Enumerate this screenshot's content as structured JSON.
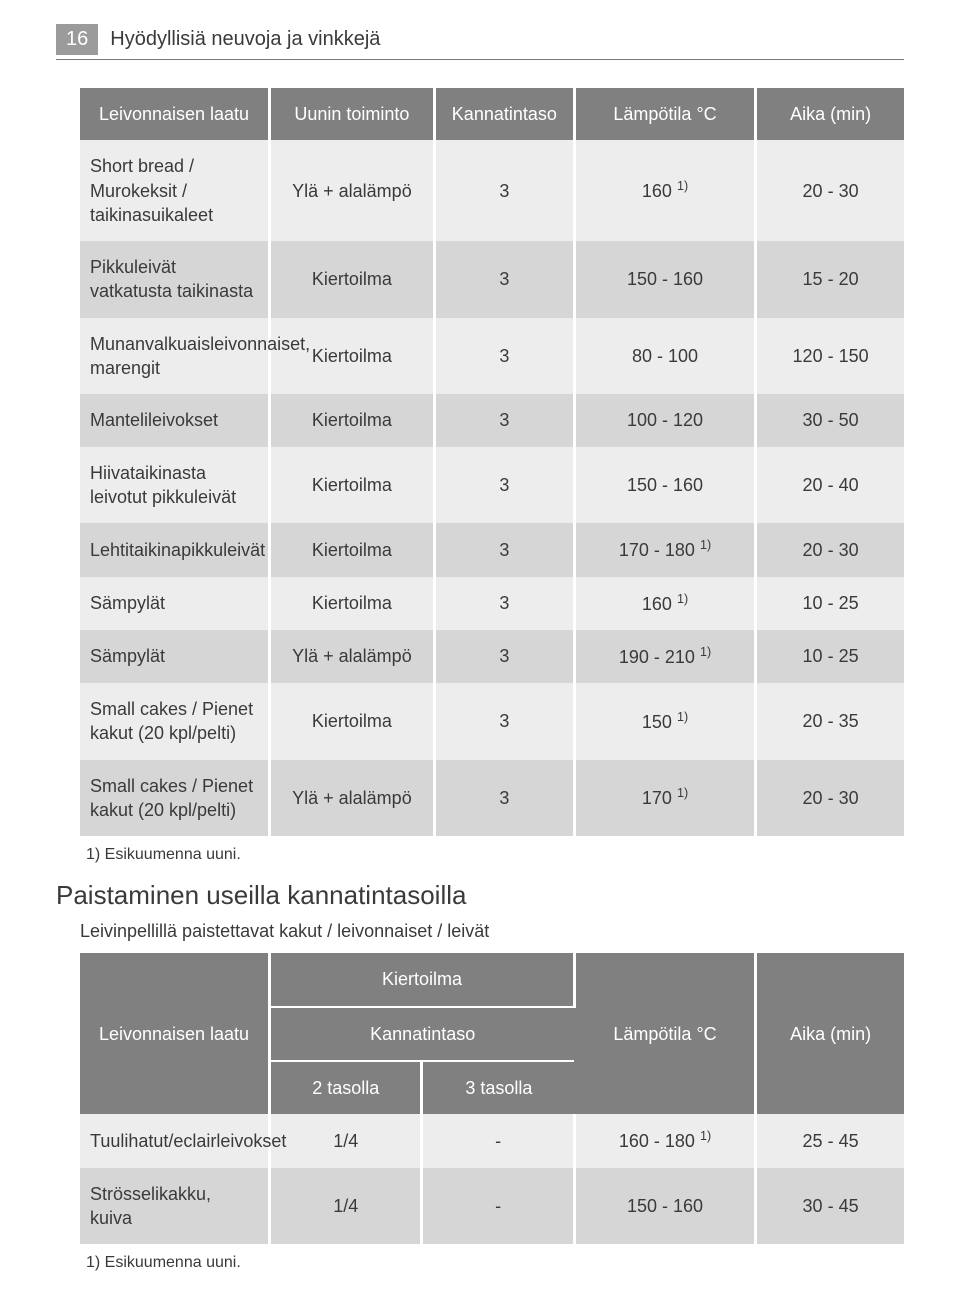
{
  "header": {
    "page_number": "16",
    "title": "Hyödyllisiä neuvoja ja vinkkejä"
  },
  "table1": {
    "headers": [
      "Leivonnaisen laatu",
      "Uunin toiminto",
      "Kannatintaso",
      "Lämpötila °C",
      "Aika (min)"
    ],
    "rows": [
      {
        "zebra": "odd",
        "cells": [
          "Short bread / Murokeksit / taikinasuikaleet",
          "Ylä + alalämpö",
          "3",
          "160 1)",
          "20 - 30"
        ]
      },
      {
        "zebra": "even",
        "cells": [
          "Pikkuleivät vatkatusta taikinasta",
          "Kiertoilma",
          "3",
          "150 - 160",
          "15 - 20"
        ]
      },
      {
        "zebra": "odd",
        "cells": [
          "Munanvalkuaisleivonnaiset, marengit",
          "Kiertoilma",
          "3",
          "80 - 100",
          "120 - 150"
        ]
      },
      {
        "zebra": "even",
        "cells": [
          "Mantelileivokset",
          "Kiertoilma",
          "3",
          "100 - 120",
          "30 - 50"
        ]
      },
      {
        "zebra": "odd",
        "cells": [
          "Hiivataikinasta leivotut pikkuleivät",
          "Kiertoilma",
          "3",
          "150 - 160",
          "20 - 40"
        ]
      },
      {
        "zebra": "even",
        "cells": [
          "Lehtitaikinapikkuleivät",
          "Kiertoilma",
          "3",
          "170 - 180 1)",
          "20 - 30"
        ]
      },
      {
        "zebra": "odd",
        "cells": [
          "Sämpylät",
          "Kiertoilma",
          "3",
          "160 1)",
          "10 - 25"
        ]
      },
      {
        "zebra": "even",
        "cells": [
          "Sämpylät",
          "Ylä + alalämpö",
          "3",
          "190 - 210 1)",
          "10 - 25"
        ]
      },
      {
        "zebra": "odd",
        "cells": [
          "Small cakes / Pienet kakut (20 kpl/pelti)",
          "Kiertoilma",
          "3",
          "150 1)",
          "20 - 35"
        ]
      },
      {
        "zebra": "even",
        "cells": [
          "Small cakes / Pienet kakut (20 kpl/pelti)",
          "Ylä + alalämpö",
          "3",
          "170 1)",
          "20 - 30"
        ]
      }
    ]
  },
  "footnote1": "1) Esikuumenna uuni.",
  "section": {
    "title": "Paistaminen useilla kannatintasoilla",
    "sub": "Leivinpellillä paistettavat kakut / leivonnaiset / leivät"
  },
  "table2": {
    "headers": {
      "col0": "Leivonnaisen laatu",
      "group_top": "Kiertoilma",
      "group_mid": "Kannatintaso",
      "g1": "2 tasolla",
      "g2": "3 tasolla",
      "col3": "Lämpötila °C",
      "col4": "Aika (min)"
    },
    "rows": [
      {
        "zebra": "odd",
        "cells": [
          "Tuulihatut/eclairleivokset",
          "1/4",
          "-",
          "160 - 180 1)",
          "25 - 45"
        ]
      },
      {
        "zebra": "even",
        "cells": [
          "Strösselikakku, kuiva",
          "1/4",
          "-",
          "150 - 160",
          "30 - 45"
        ]
      }
    ]
  },
  "footnote2": "1) Esikuumenna uuni."
}
